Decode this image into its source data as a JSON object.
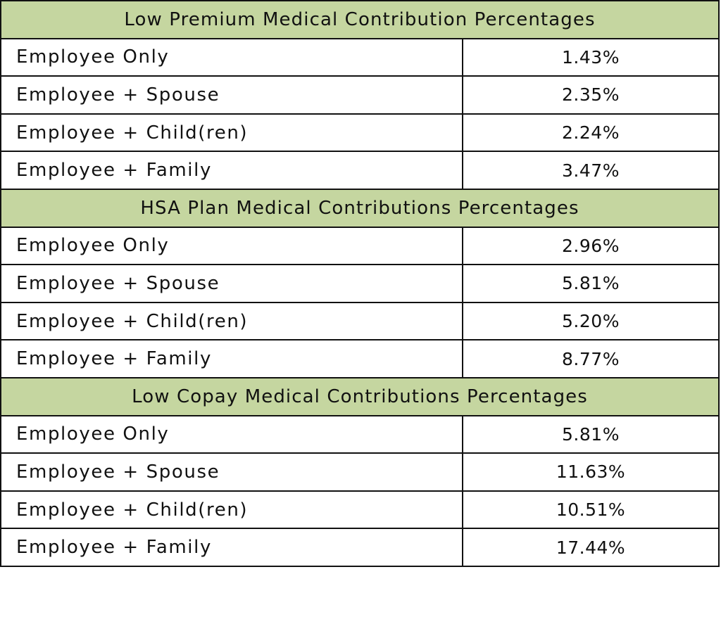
{
  "sections": [
    {
      "title": "Low Premium Medical Contribution Percentages",
      "rows": [
        {
          "label": "Employee Only",
          "value": "1.43%"
        },
        {
          "label": "Employee + Spouse",
          "value": "2.35%"
        },
        {
          "label": "Employee + Child(ren)",
          "value": "2.24%"
        },
        {
          "label": "Employee + Family",
          "value": "3.47%"
        }
      ]
    },
    {
      "title": "HSA Plan Medical Contributions Percentages",
      "rows": [
        {
          "label": "Employee Only",
          "value": "2.96%"
        },
        {
          "label": "Employee + Spouse",
          "value": "5.81%"
        },
        {
          "label": "Employee + Child(ren)",
          "value": "5.20%"
        },
        {
          "label": "Employee + Family",
          "value": "8.77%"
        }
      ]
    },
    {
      "title": "Low Copay Medical Contributions Percentages",
      "rows": [
        {
          "label": "Employee Only",
          "value": "5.81%"
        },
        {
          "label": "Employee + Spouse",
          "value": "11.63%"
        },
        {
          "label": "Employee + Child(ren)",
          "value": "10.51%"
        },
        {
          "label": "Employee + Family",
          "value": "17.44%"
        }
      ]
    }
  ],
  "colors": {
    "header_bg": "#c5d6a0",
    "border": "#111111",
    "text": "#111111"
  }
}
